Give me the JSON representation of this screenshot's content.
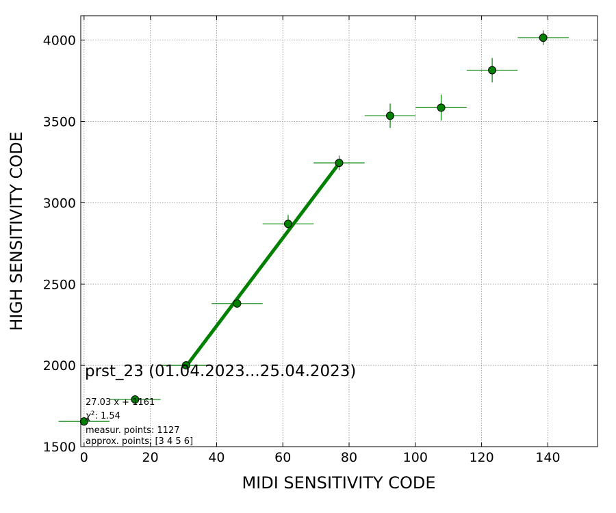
{
  "chart_data": {
    "type": "scatter",
    "xlabel": "MIDI SENSITIVITY CODE",
    "ylabel": "HIGH SENSITIVITY CODE",
    "xlim": [
      -1,
      155
    ],
    "ylim": [
      1500,
      4150
    ],
    "xticks": [
      0,
      20,
      40,
      60,
      80,
      100,
      120,
      140
    ],
    "yticks": [
      1500,
      2000,
      2500,
      3000,
      3500,
      4000
    ],
    "grid": true,
    "colors": {
      "series": "#008000",
      "grid": "#888888"
    },
    "series": [
      {
        "points": [
          {
            "x": 0.0,
            "y": 1655,
            "xerr": 7.7,
            "yerr": 0
          },
          {
            "x": 15.4,
            "y": 1790,
            "xerr": 7.7,
            "yerr": 0
          },
          {
            "x": 30.8,
            "y": 2000,
            "xerr": 7.7,
            "yerr": 0
          },
          {
            "x": 46.2,
            "y": 2380,
            "xerr": 7.7,
            "yerr": 0
          },
          {
            "x": 61.6,
            "y": 2870,
            "xerr": 7.7,
            "yerr": 55
          },
          {
            "x": 77.0,
            "y": 3245,
            "xerr": 7.7,
            "yerr": 45
          },
          {
            "x": 92.4,
            "y": 3535,
            "xerr": 7.7,
            "yerr": 75
          },
          {
            "x": 107.8,
            "y": 3585,
            "xerr": 7.7,
            "yerr": 80
          },
          {
            "x": 123.2,
            "y": 3815,
            "xerr": 7.7,
            "yerr": 75
          },
          {
            "x": 138.6,
            "y": 4015,
            "xerr": 7.7,
            "yerr": 45
          }
        ]
      }
    ],
    "fit_line": {
      "x_start": 30.8,
      "x_end": 77.0,
      "slope": 27.03,
      "intercept": 1161
    },
    "annotations": {
      "title": "prst_23 (01.04.2023...25.04.2023)",
      "fit_eq": "27.03 x + 1161",
      "chi2_label": "χ",
      "chi2_sup": "2",
      "chi2_value": ": 1.54",
      "measur": "measur. points: 1127",
      "approx": "approx. points: [3 4 5 6]"
    }
  }
}
